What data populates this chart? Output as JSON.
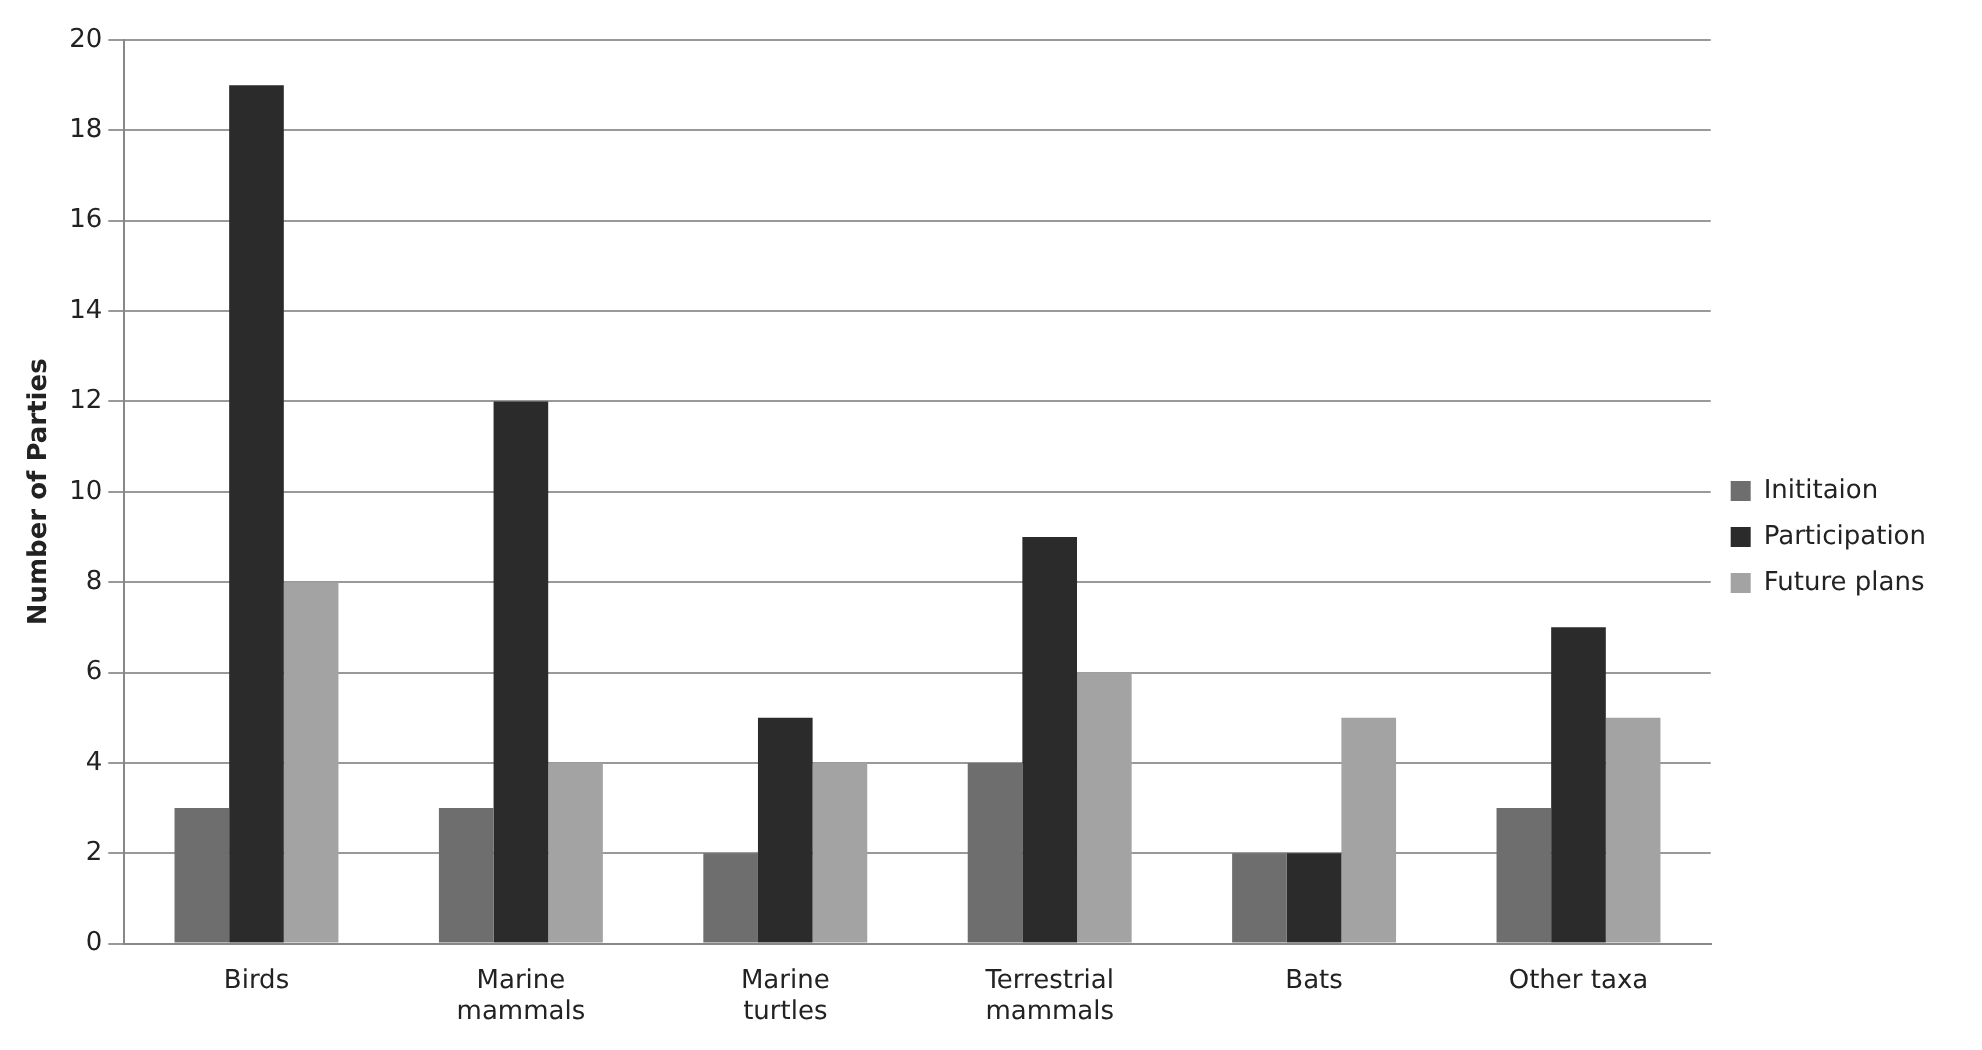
{
  "chart_data": {
    "type": "bar",
    "ylabel": "Number of Parties",
    "categories": [
      "Birds",
      "Marine mammals",
      "Marine turtles",
      "Terrestrial mammals",
      "Bats",
      "Other taxa"
    ],
    "series": [
      {
        "name": "Inititaion",
        "color": "#6e6e6e",
        "values": [
          3,
          3,
          2,
          4,
          2,
          3
        ]
      },
      {
        "name": "Participation",
        "color": "#2b2b2b",
        "values": [
          19,
          12,
          5,
          9,
          2,
          7
        ]
      },
      {
        "name": "Future plans",
        "color": "#a3a3a3",
        "values": [
          8,
          4,
          4,
          6,
          5,
          5
        ]
      }
    ],
    "ylim": [
      0,
      20
    ],
    "yticks": [
      0,
      2,
      4,
      6,
      8,
      10,
      12,
      14,
      16,
      18,
      20
    ],
    "grid": "y",
    "legend": "right"
  }
}
